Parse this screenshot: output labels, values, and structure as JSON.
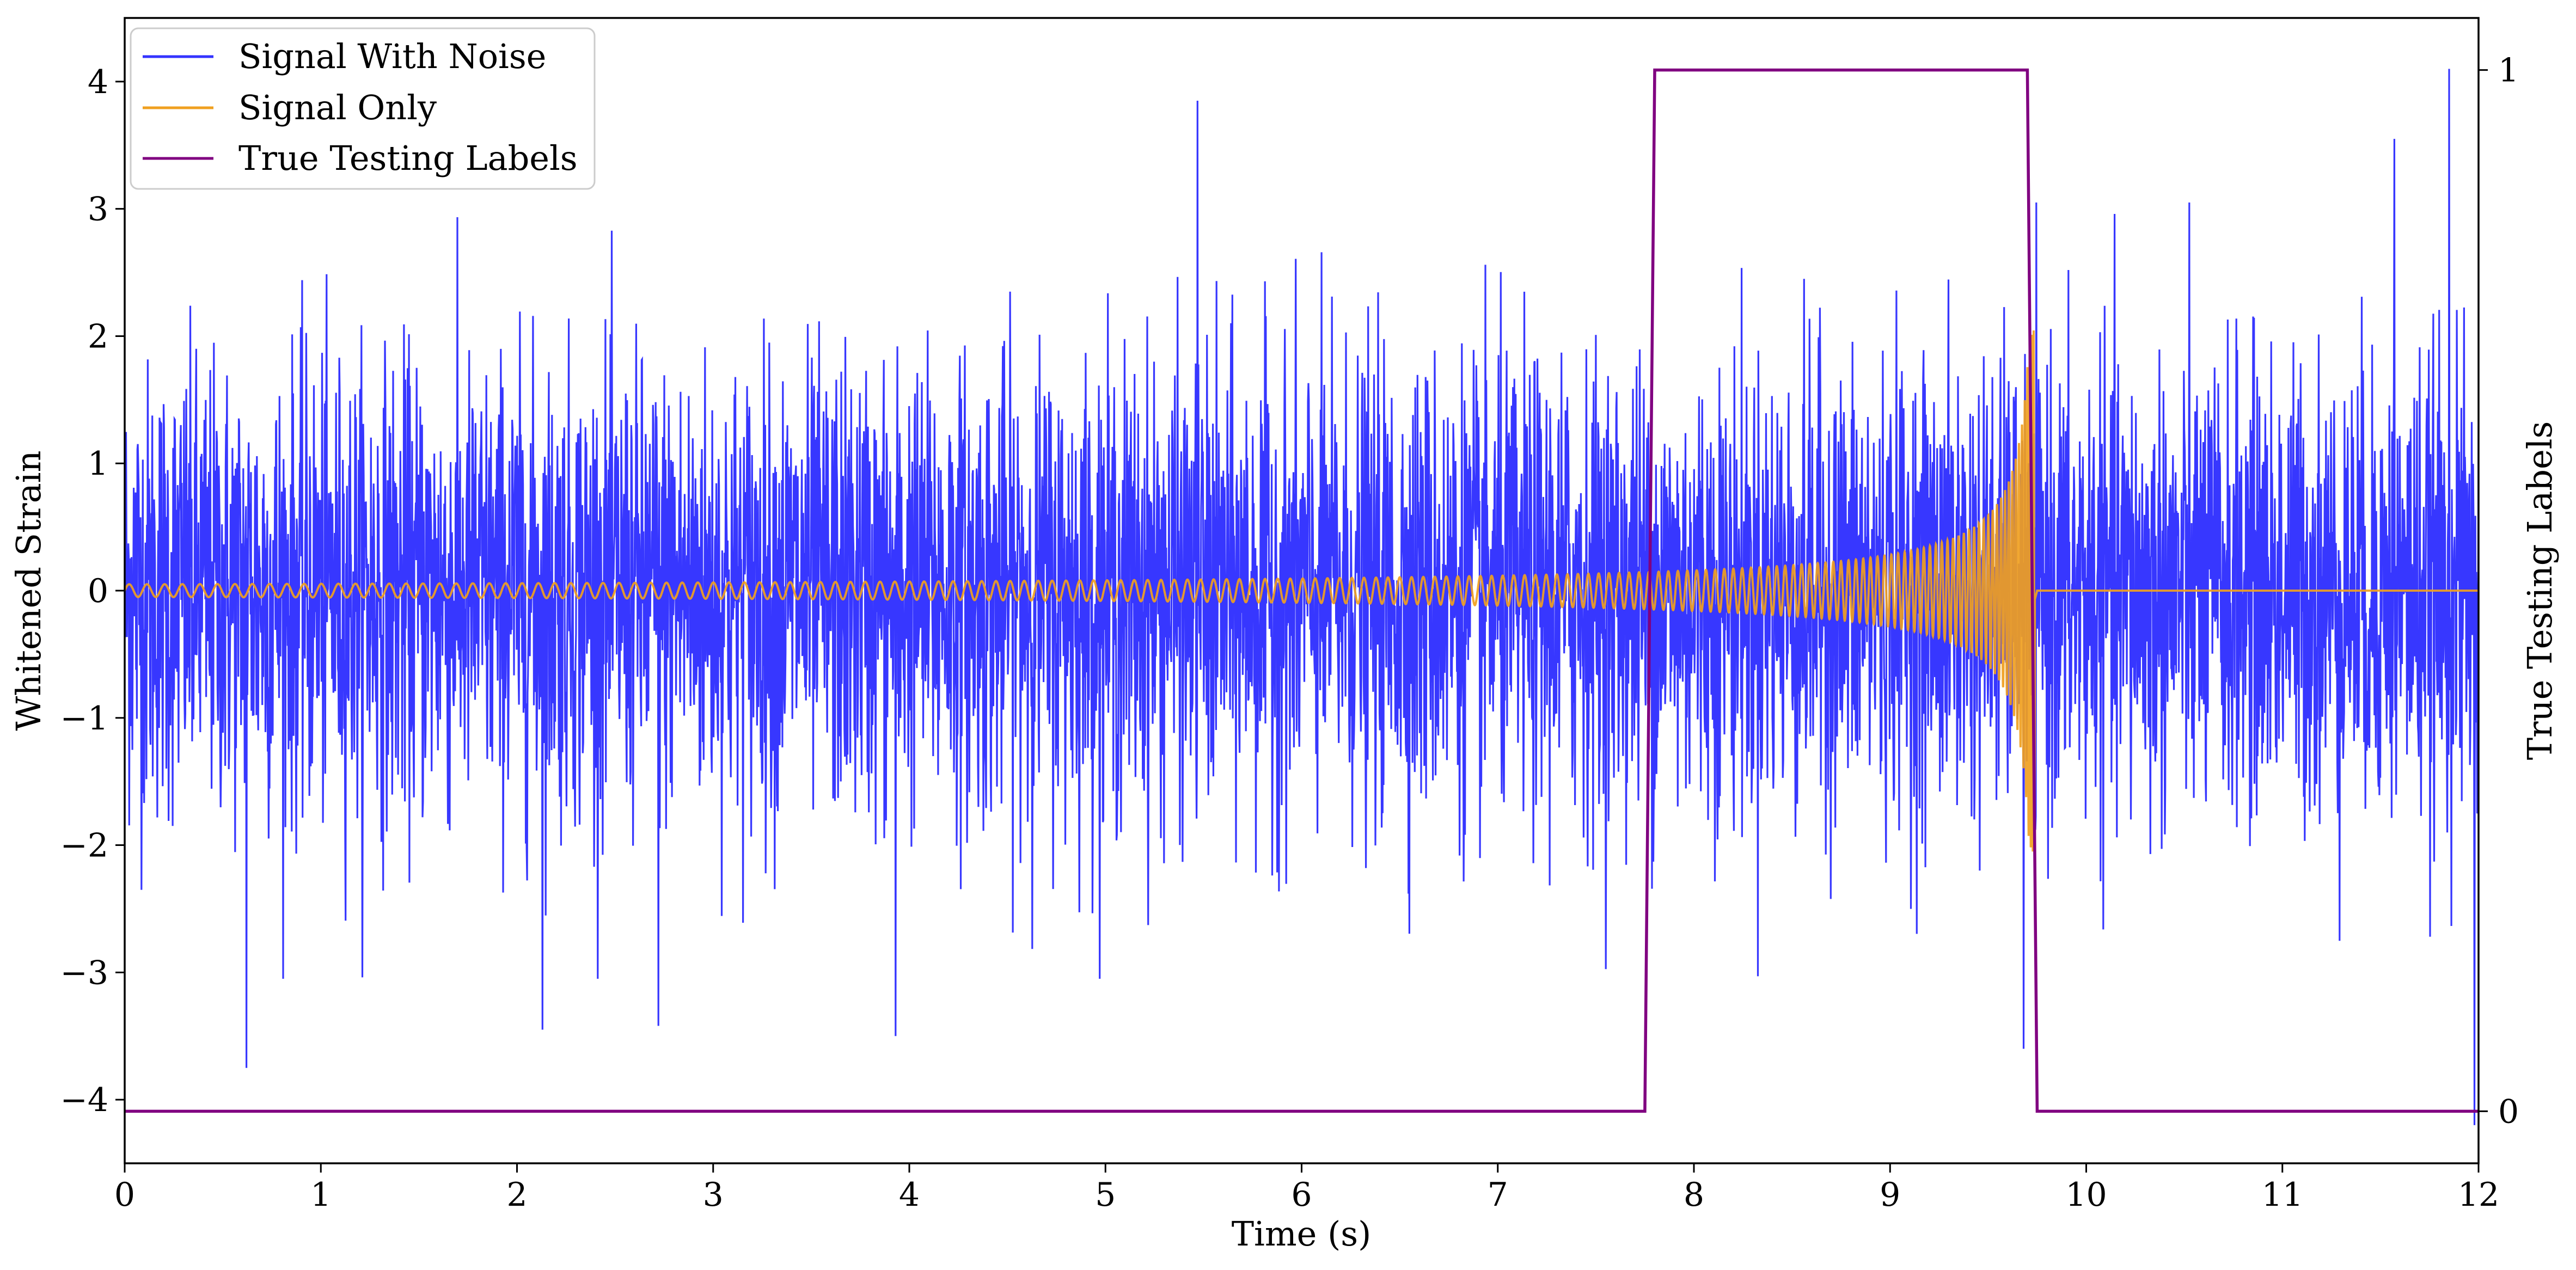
{
  "chart_data": {
    "type": "line",
    "xlabel": "Time (s)",
    "ylabel": "Whitened Strain",
    "y2label": "True Testing Labels",
    "xlim": [
      0,
      12
    ],
    "ylim": [
      -4.5,
      4.5
    ],
    "y2lim": [
      -0.05,
      1.05
    ],
    "x_ticks": [
      0,
      1,
      2,
      3,
      4,
      5,
      6,
      7,
      8,
      9,
      10,
      11,
      12
    ],
    "y_ticks": [
      -4,
      -3,
      -2,
      -1,
      0,
      1,
      2,
      3,
      4
    ],
    "y_tick_labels": [
      "−4",
      "−3",
      "−2",
      "−1",
      "0",
      "1",
      "2",
      "3",
      "4"
    ],
    "y2_ticks": [
      0,
      1
    ],
    "y2_tick_labels": [
      "0",
      "1"
    ],
    "grid": false,
    "legend": {
      "position": "top-left",
      "entries": [
        "Signal With Noise",
        "Signal Only",
        "True Testing Labels"
      ]
    },
    "series": [
      {
        "name": "Signal With Noise",
        "axis": "left",
        "color": "#3333ff",
        "kind": "noise",
        "x_range": [
          0,
          12
        ],
        "typical_envelope": [
          -1.6,
          1.6
        ],
        "extremes": [
          {
            "x": 0.62,
            "y": -3.75
          },
          {
            "x": 2.13,
            "y": -3.45
          },
          {
            "x": 2.72,
            "y": -3.42
          },
          {
            "x": 3.93,
            "y": -3.5
          },
          {
            "x": 5.47,
            "y": 3.85
          },
          {
            "x": 9.68,
            "y": -3.6
          },
          {
            "x": 11.57,
            "y": 3.55
          },
          {
            "x": 11.85,
            "y": 4.1
          },
          {
            "x": 11.98,
            "y": -4.2
          }
        ]
      },
      {
        "name": "Signal Only",
        "axis": "left",
        "color": "#f0a020",
        "kind": "chirp",
        "chirp_start": 0,
        "chirp_end": 9.75,
        "start_amplitude": 0.05,
        "peak_amplitude": 2.05,
        "after_end_value": 0
      },
      {
        "name": "True Testing Labels",
        "axis": "right",
        "color": "#800080",
        "x": [
          0,
          7.75,
          7.8,
          9.7,
          9.75,
          12
        ],
        "y": [
          0,
          0,
          1,
          1,
          0,
          0
        ]
      }
    ]
  }
}
